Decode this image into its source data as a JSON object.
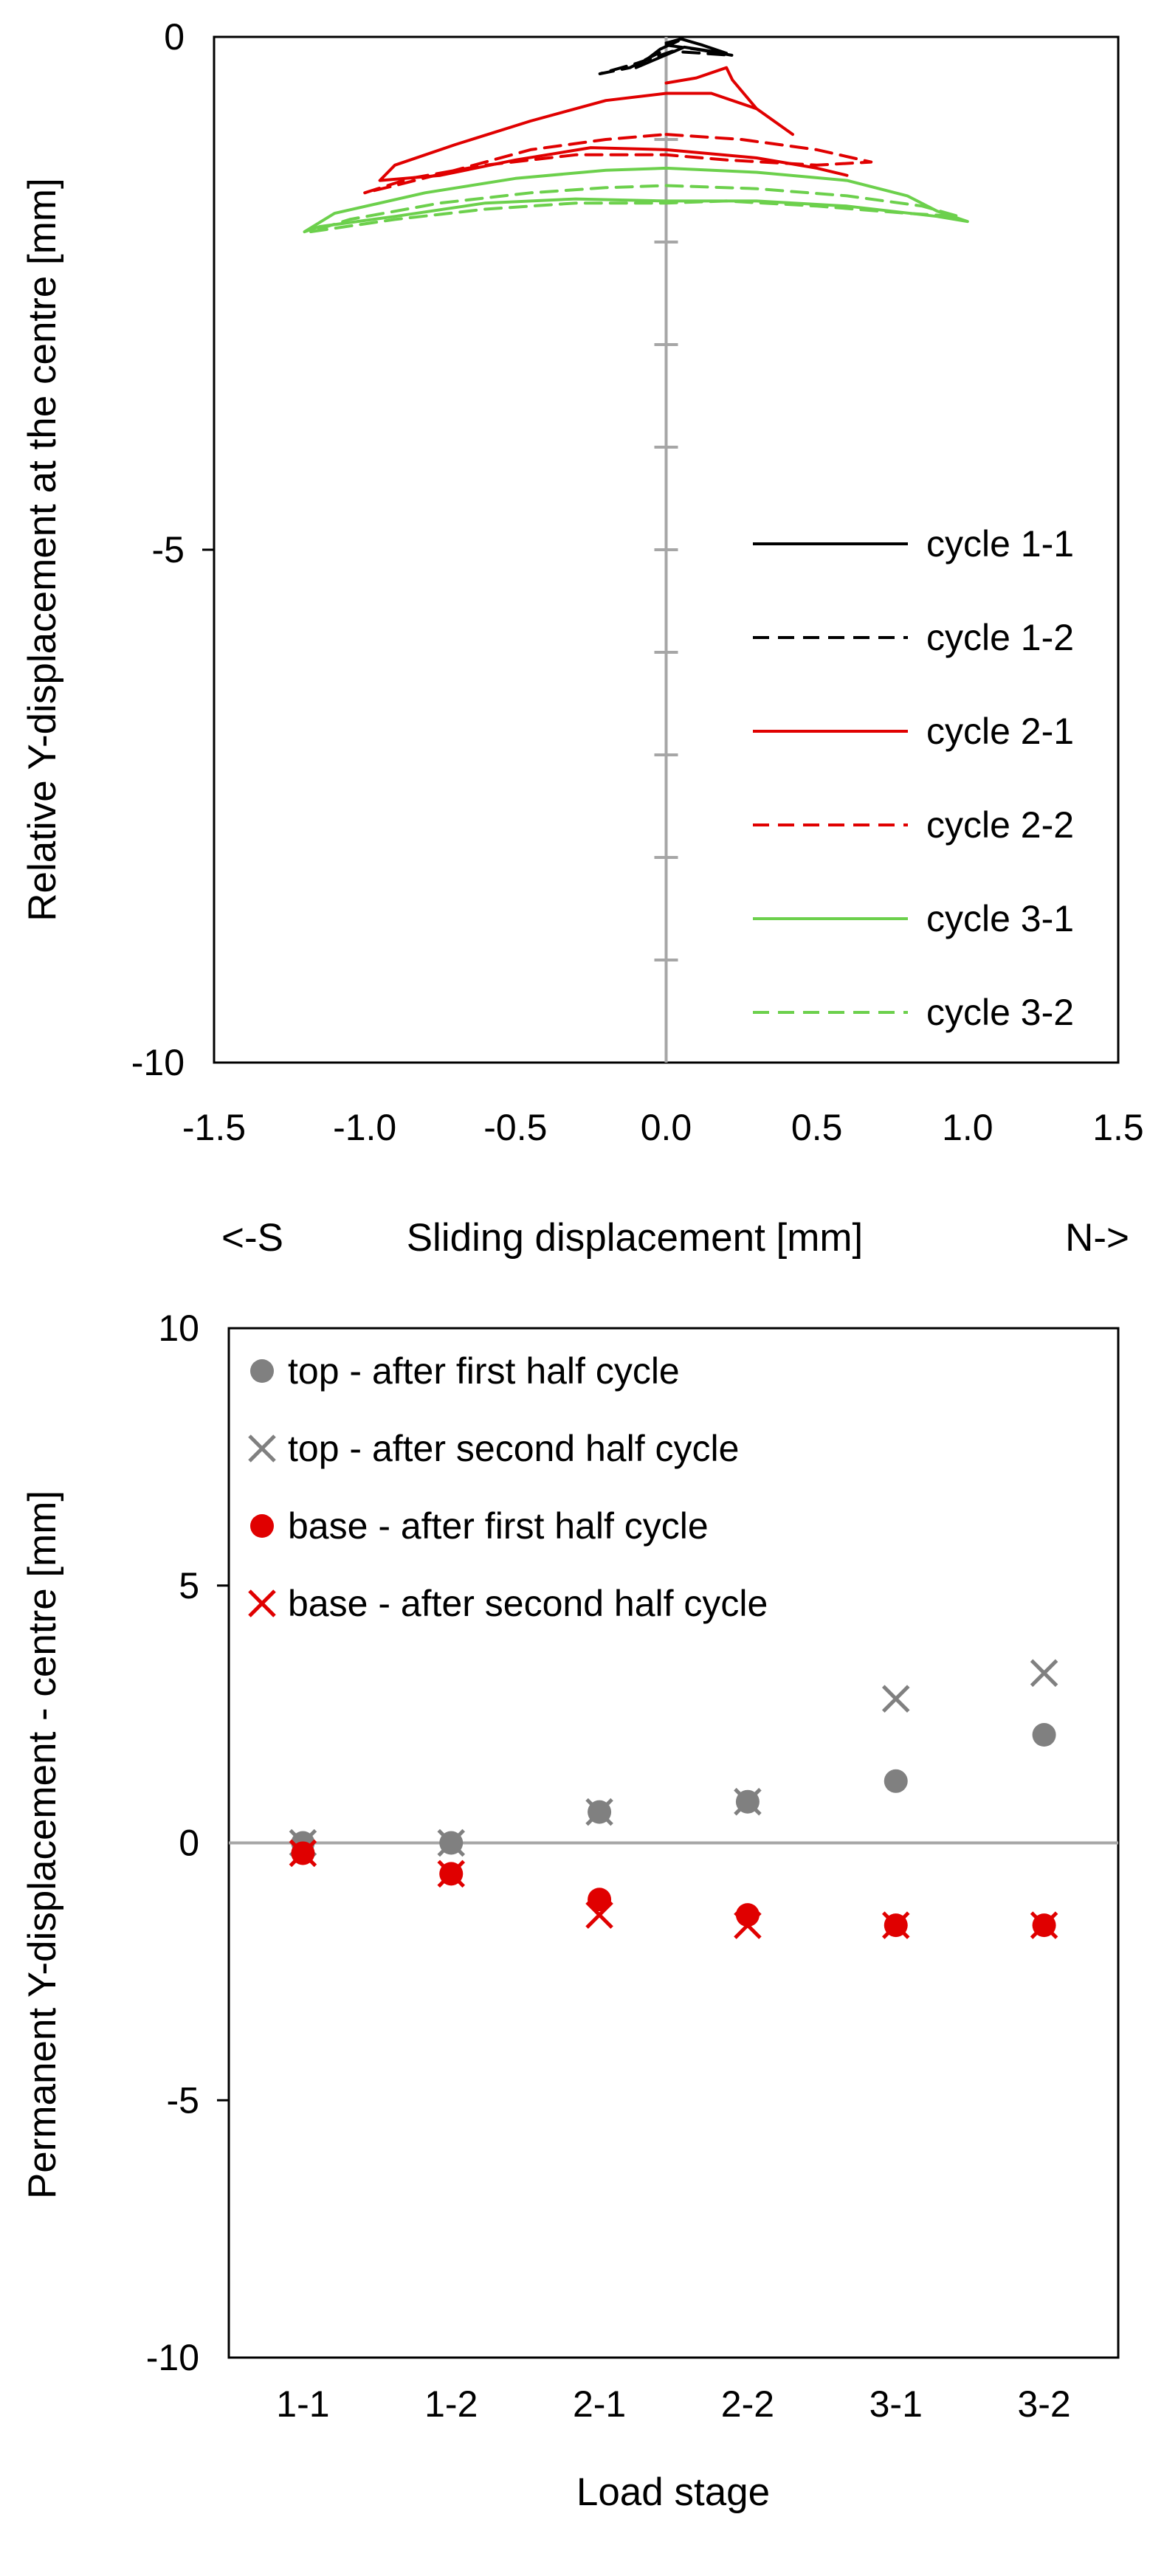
{
  "colors": {
    "axis": "#a6a6a6",
    "frame": "#000000",
    "cycle1": "#000000",
    "cycle2": "#e00000",
    "cycle3": "#6cd04c",
    "top": "#808080",
    "base": "#e00000"
  },
  "chart_data": [
    {
      "type": "line",
      "xlabel": "Sliding displacement [mm]",
      "xlabel_left": "<-S",
      "xlabel_right": "N->",
      "ylabel": "Relative Y-displacement at the centre [mm]",
      "xlim": [
        -1.5,
        1.5
      ],
      "ylim": [
        -10,
        0
      ],
      "xticks": [
        "-1.5",
        "-1.0",
        "-0.5",
        "0.0",
        "0.5",
        "1.0",
        "1.5"
      ],
      "yticks": [
        "0",
        "-5",
        "-10"
      ],
      "legend_position": "right",
      "series": [
        {
          "name": "cycle 1-1",
          "color_key": "cycle1",
          "dash": false,
          "points": [
            [
              0.0,
              -0.06
            ],
            [
              0.05,
              -0.02
            ],
            [
              0.12,
              -0.08
            ],
            [
              0.2,
              -0.16
            ],
            [
              0.15,
              -0.14
            ],
            [
              0.06,
              -0.1
            ],
            [
              -0.02,
              -0.2
            ],
            [
              -0.1,
              -0.3
            ],
            [
              -0.02,
              -0.12
            ],
            [
              0.04,
              -0.04
            ]
          ]
        },
        {
          "name": "cycle 1-2",
          "color_key": "cycle1",
          "dash": true,
          "points": [
            [
              0.0,
              -0.08
            ],
            [
              0.1,
              -0.12
            ],
            [
              0.22,
              -0.18
            ],
            [
              0.12,
              -0.16
            ],
            [
              0.02,
              -0.14
            ],
            [
              -0.1,
              -0.26
            ],
            [
              -0.22,
              -0.36
            ],
            [
              -0.12,
              -0.3
            ],
            [
              -0.02,
              -0.15
            ]
          ]
        },
        {
          "name": "cycle 2-1",
          "color_key": "cycle2",
          "dash": false,
          "points": [
            [
              0.0,
              -0.45
            ],
            [
              0.1,
              -0.4
            ],
            [
              0.2,
              -0.3
            ],
            [
              0.22,
              -0.42
            ],
            [
              0.3,
              -0.7
            ],
            [
              0.42,
              -0.95
            ],
            [
              0.3,
              -0.7
            ],
            [
              0.15,
              -0.55
            ],
            [
              0.0,
              -0.55
            ],
            [
              -0.2,
              -0.62
            ],
            [
              -0.45,
              -0.82
            ],
            [
              -0.7,
              -1.05
            ],
            [
              -0.9,
              -1.25
            ],
            [
              -0.95,
              -1.4
            ],
            [
              -0.75,
              -1.35
            ],
            [
              -0.5,
              -1.2
            ],
            [
              -0.25,
              -1.08
            ],
            [
              0.0,
              -1.1
            ],
            [
              0.3,
              -1.18
            ],
            [
              0.5,
              -1.28
            ],
            [
              0.6,
              -1.35
            ]
          ]
        },
        {
          "name": "cycle 2-2",
          "color_key": "cycle2",
          "dash": true,
          "points": [
            [
              0.0,
              -0.95
            ],
            [
              0.25,
              -1.0
            ],
            [
              0.5,
              -1.1
            ],
            [
              0.65,
              -1.2
            ],
            [
              0.68,
              -1.22
            ],
            [
              0.5,
              -1.25
            ],
            [
              0.2,
              -1.2
            ],
            [
              0.0,
              -1.15
            ],
            [
              -0.3,
              -1.15
            ],
            [
              -0.6,
              -1.25
            ],
            [
              -0.85,
              -1.38
            ],
            [
              -1.0,
              -1.52
            ],
            [
              -0.9,
              -1.45
            ],
            [
              -0.7,
              -1.3
            ],
            [
              -0.45,
              -1.1
            ],
            [
              -0.2,
              -1.0
            ],
            [
              0.0,
              -0.95
            ]
          ]
        },
        {
          "name": "cycle 3-1",
          "color_key": "cycle3",
          "dash": false,
          "points": [
            [
              0.0,
              -1.28
            ],
            [
              0.3,
              -1.32
            ],
            [
              0.6,
              -1.4
            ],
            [
              0.8,
              -1.55
            ],
            [
              0.9,
              -1.7
            ],
            [
              1.0,
              -1.8
            ],
            [
              0.9,
              -1.75
            ],
            [
              0.6,
              -1.65
            ],
            [
              0.3,
              -1.6
            ],
            [
              0.0,
              -1.6
            ],
            [
              -0.3,
              -1.58
            ],
            [
              -0.6,
              -1.62
            ],
            [
              -0.9,
              -1.75
            ],
            [
              -1.15,
              -1.85
            ],
            [
              -1.2,
              -1.9
            ],
            [
              -1.1,
              -1.72
            ],
            [
              -0.8,
              -1.52
            ],
            [
              -0.5,
              -1.38
            ],
            [
              -0.2,
              -1.3
            ],
            [
              0.0,
              -1.28
            ]
          ]
        },
        {
          "name": "cycle 3-2",
          "color_key": "cycle3",
          "dash": true,
          "points": [
            [
              0.0,
              -1.45
            ],
            [
              0.3,
              -1.48
            ],
            [
              0.6,
              -1.55
            ],
            [
              0.85,
              -1.65
            ],
            [
              0.97,
              -1.75
            ],
            [
              0.8,
              -1.72
            ],
            [
              0.5,
              -1.65
            ],
            [
              0.2,
              -1.6
            ],
            [
              0.0,
              -1.62
            ],
            [
              -0.3,
              -1.62
            ],
            [
              -0.6,
              -1.68
            ],
            [
              -0.9,
              -1.78
            ],
            [
              -1.18,
              -1.9
            ],
            [
              -1.05,
              -1.78
            ],
            [
              -0.75,
              -1.62
            ],
            [
              -0.45,
              -1.52
            ],
            [
              -0.2,
              -1.47
            ],
            [
              0.0,
              -1.45
            ]
          ]
        }
      ]
    },
    {
      "type": "scatter",
      "xlabel": "Load stage",
      "ylabel": "Permanent Y-displacement - centre [mm]",
      "ylim": [
        -10,
        10
      ],
      "yticks": [
        "10",
        "5",
        "0",
        "-5",
        "-10"
      ],
      "categories": [
        "1-1",
        "1-2",
        "2-1",
        "2-2",
        "3-1",
        "3-2"
      ],
      "legend_position": "top-left",
      "series": [
        {
          "name": "top - after first half cycle",
          "marker": "circle",
          "color_key": "top",
          "values": [
            0.0,
            0.0,
            0.6,
            0.8,
            1.2,
            2.1
          ]
        },
        {
          "name": "top - after second half cycle",
          "marker": "x",
          "color_key": "top",
          "values": [
            0.0,
            0.0,
            0.6,
            0.8,
            2.8,
            3.3
          ]
        },
        {
          "name": "base - after first half cycle",
          "marker": "circle",
          "color_key": "base",
          "values": [
            -0.2,
            -0.6,
            -1.1,
            -1.4,
            -1.6,
            -1.6
          ]
        },
        {
          "name": "base - after second half cycle",
          "marker": "x",
          "color_key": "base",
          "values": [
            -0.2,
            -0.6,
            -1.4,
            -1.6,
            -1.6,
            -1.6
          ]
        }
      ]
    }
  ]
}
